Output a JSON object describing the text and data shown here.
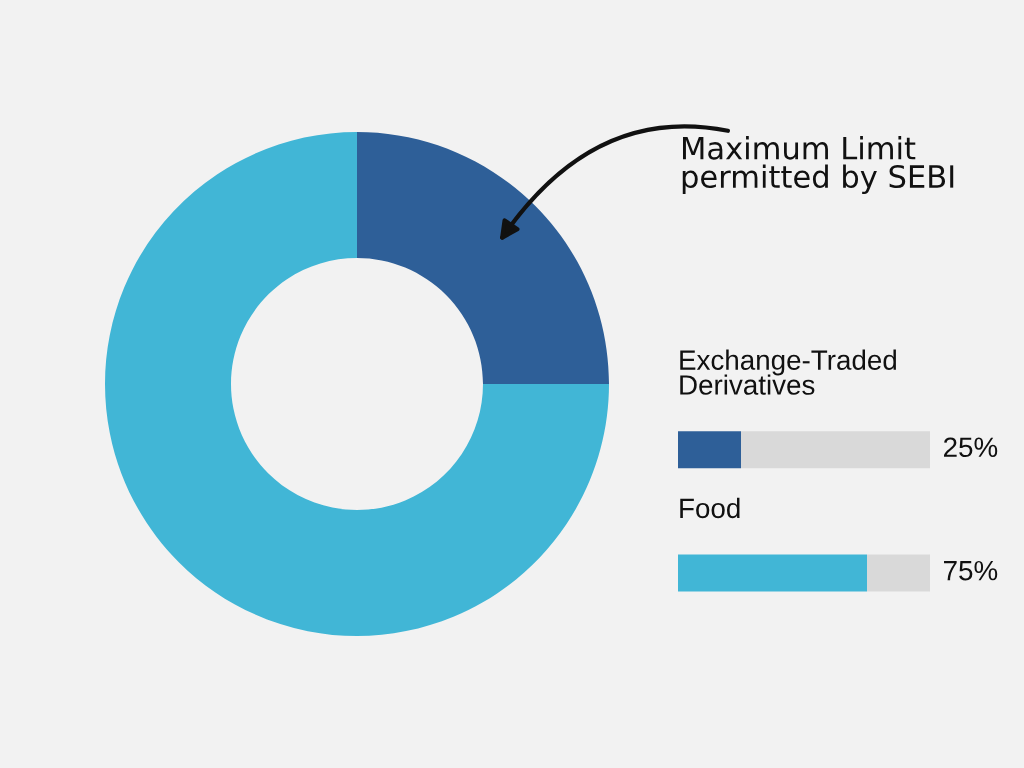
{
  "chart_data": [
    {
      "type": "donut",
      "categories": [
        null,
        null
      ],
      "values": [
        25,
        75
      ],
      "colors": [
        "#2e5f98",
        "#41b6d6"
      ],
      "annotations": [
        "Maximum Limit\npermitted by SEBI"
      ]
    },
    {
      "type": "bar",
      "orientation": "horizontal",
      "stacked": true,
      "categories": [
        "Exchange-Traded\nDerivatives",
        "Food"
      ],
      "xlim": [
        0,
        100
      ],
      "series": [
        {
          "colors": [
            "#2e5f98",
            "#41b6d6"
          ],
          "values": [
            25,
            75
          ],
          "value_labels": [
            "25%",
            "75%"
          ]
        },
        {
          "color": "#d9d9d9",
          "values": [
            75,
            25
          ]
        }
      ]
    }
  ]
}
